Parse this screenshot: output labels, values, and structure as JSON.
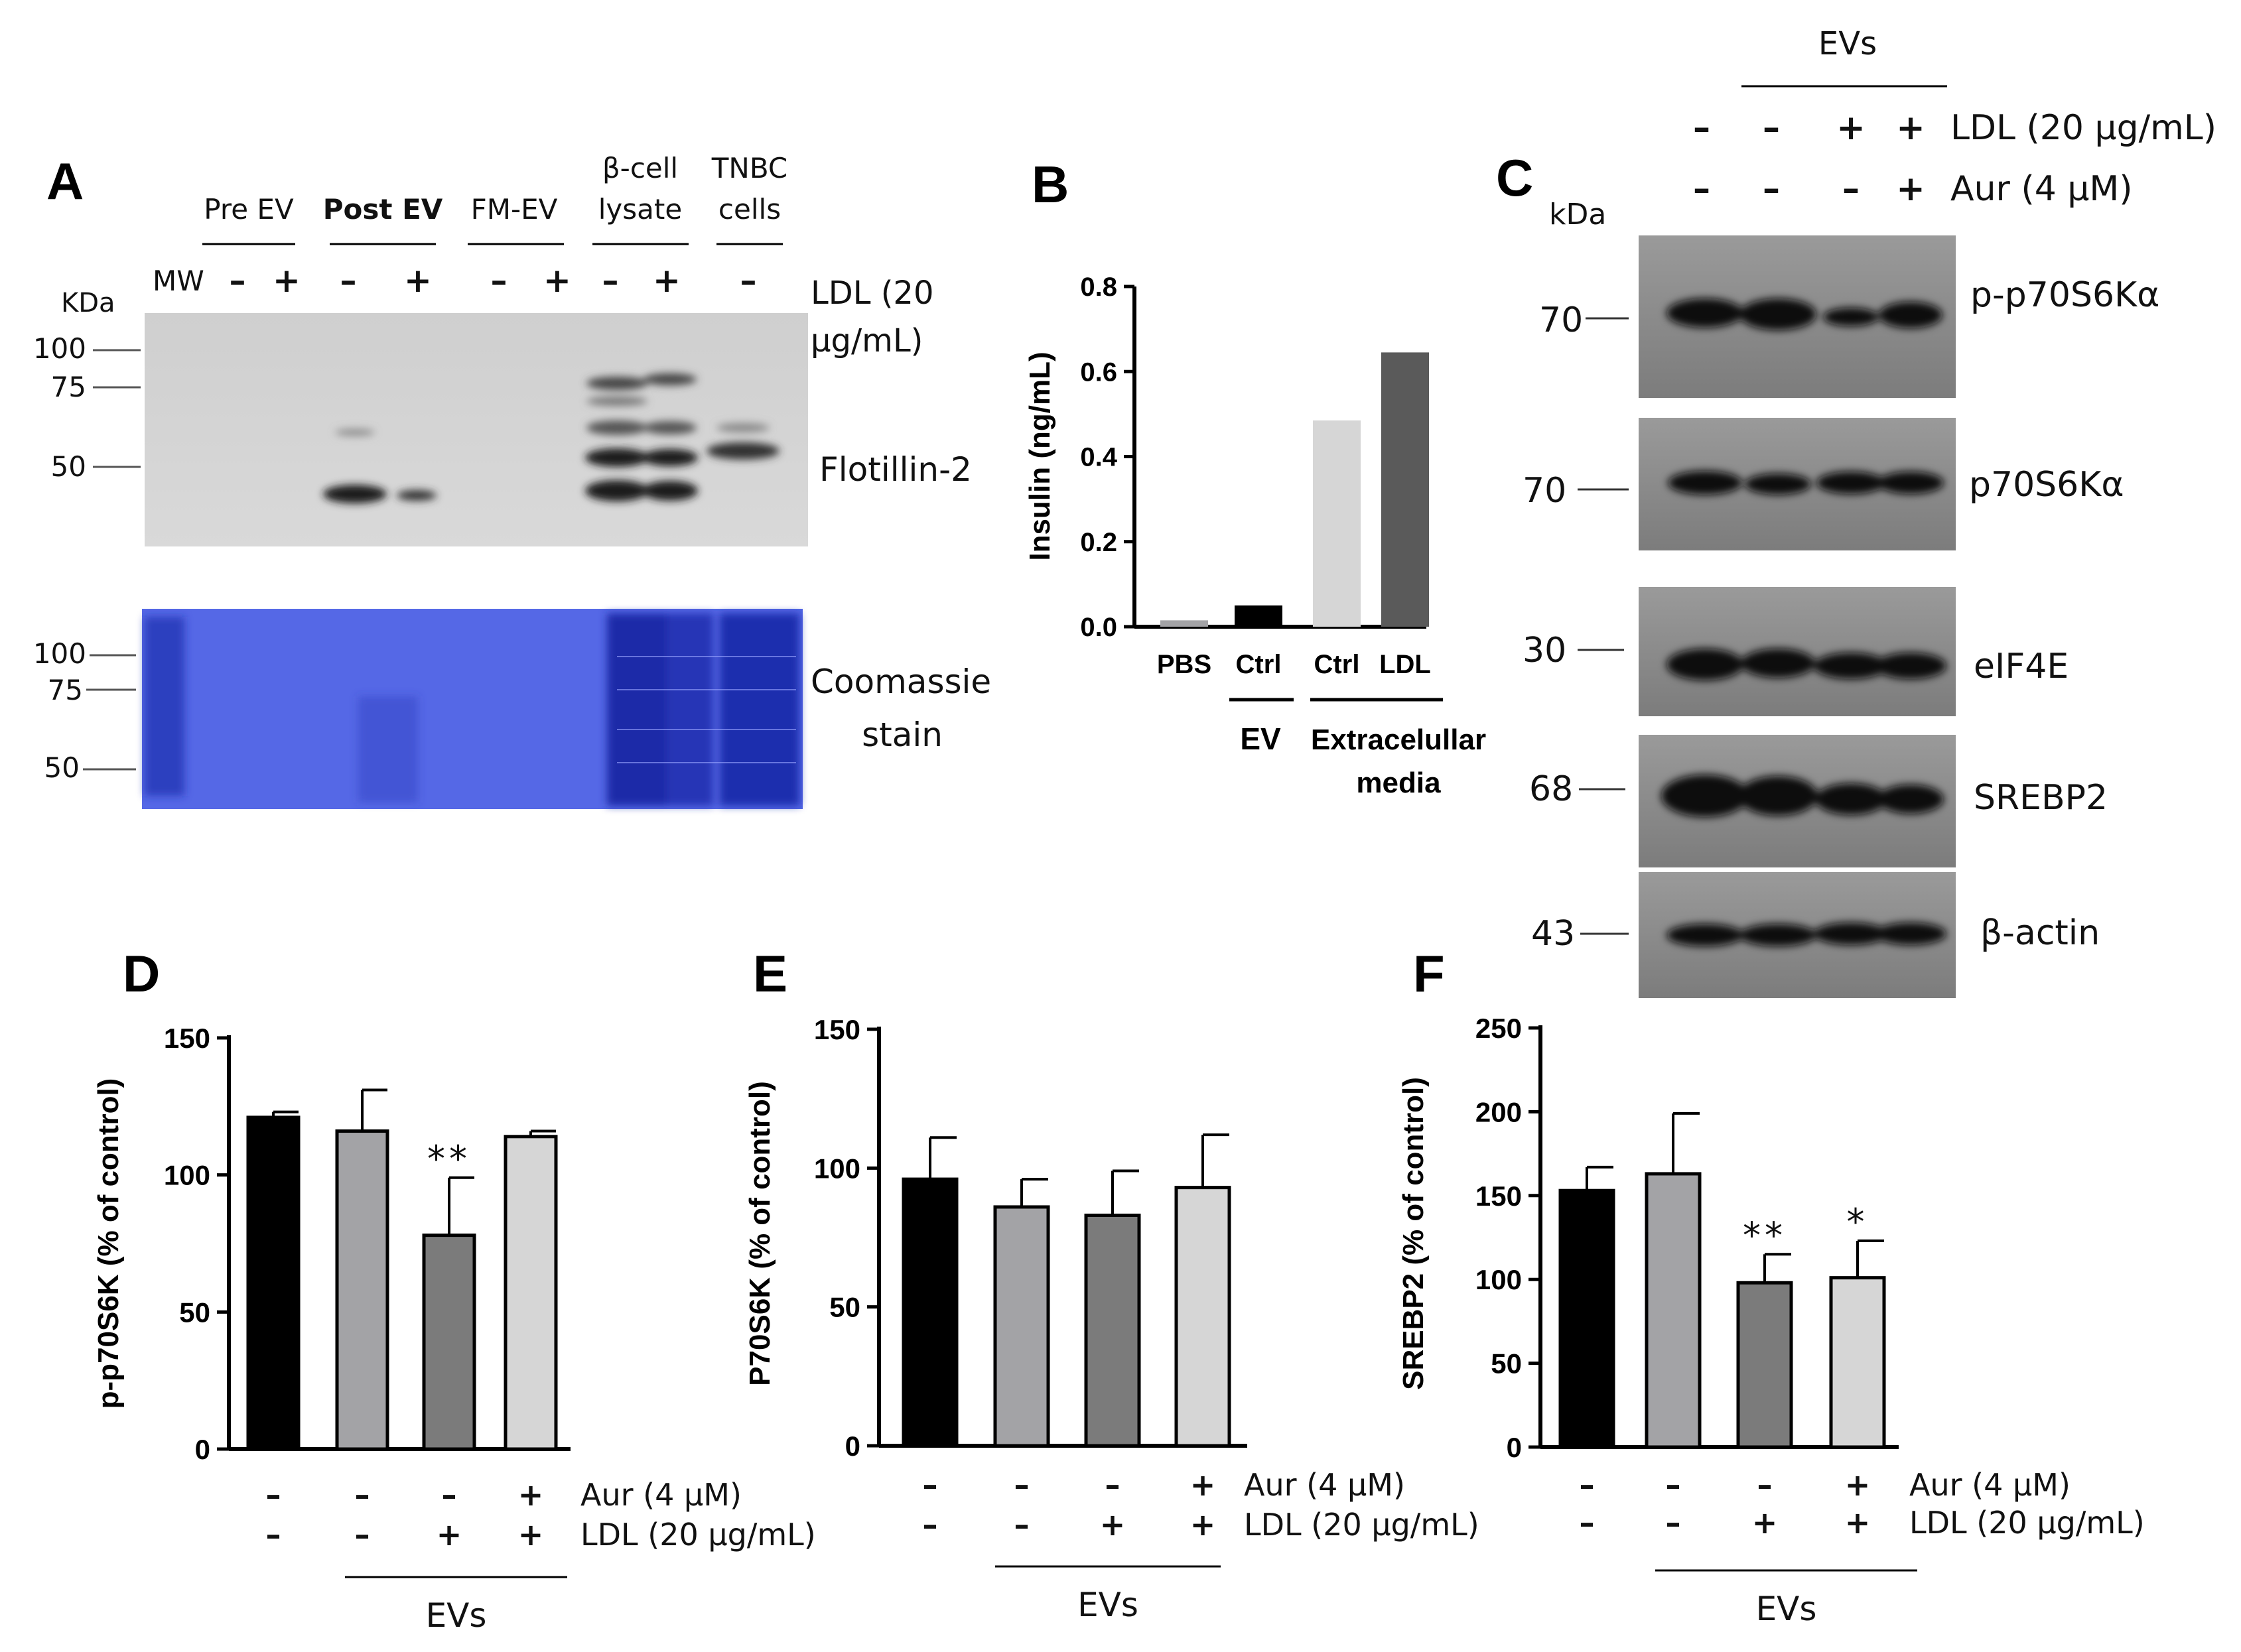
{
  "colors": {
    "black": "#000000",
    "dark_gray": "#5a5a5a",
    "mid_gray": "#7b7b7b",
    "gray": "#a3a3a6",
    "light_gray": "#d6d6d6",
    "blot_bg": "#8e8e8e",
    "coomassie": "#3a4fd6"
  },
  "panel_a": {
    "letter": "A",
    "groups": [
      "Pre EV",
      "Post EV",
      "FM-EV",
      "β-cell",
      "lysate",
      "TNBC",
      "cells"
    ],
    "mw_label": "MW",
    "signs": [
      "–",
      "+",
      "–",
      "+",
      "–",
      "+",
      "–",
      "+",
      "–"
    ],
    "kda": "KDa",
    "treatment_label_1": "LDL  (20",
    "treatment_label_2": "μg/mL)",
    "markers_top": [
      "100",
      "75",
      "50"
    ],
    "markers_bottom": [
      "100",
      "75",
      "50"
    ],
    "blot_label": "Flotillin-2",
    "stain_label_1": "Coomassie",
    "stain_label_2": "stain"
  },
  "panel_c": {
    "letter": "C",
    "header": "EVs",
    "kda": "kDa",
    "ldl_signs": [
      "–",
      "–",
      "+",
      "+"
    ],
    "aur_signs": [
      "–",
      "–",
      "–",
      "+"
    ],
    "ldl_label": "LDL (20 μg/mL)",
    "aur_label": "Aur (4 μM)",
    "blots": [
      {
        "label": "p-p70S6Kα",
        "marker": "70"
      },
      {
        "label": "p70S6Kα",
        "marker": "70"
      },
      {
        "label": "eIF4E",
        "marker": "30"
      },
      {
        "label": "SREBP2",
        "marker": "68"
      },
      {
        "label": "β-actin",
        "marker": "43"
      }
    ]
  },
  "chart_data": [
    {
      "panel": "B",
      "type": "bar",
      "title": "",
      "xlabel": "",
      "ylabel": "Insulin (ng/mL)",
      "categories": [
        "PBS",
        "Ctrl",
        "Ctrl",
        "LDL"
      ],
      "values": [
        0.015,
        0.05,
        0.485,
        0.645
      ],
      "bar_colors": [
        "#a3a3a6",
        "#000000",
        "#d6d6d6",
        "#5a5a5a"
      ],
      "ylim": [
        0,
        0.8
      ],
      "yticks": [
        "0.0",
        "0.2",
        "0.4",
        "0.6",
        "0.8"
      ],
      "group_labels": [
        "EV",
        "Extracelullar",
        "media"
      ]
    },
    {
      "panel": "D",
      "type": "bar",
      "ylabel": "p-p70S6K (% of control)",
      "values": [
        121,
        116,
        78,
        114
      ],
      "errors": [
        2,
        15,
        21,
        2
      ],
      "significance": [
        "",
        "",
        "**",
        ""
      ],
      "bar_colors": [
        "#000000",
        "#a3a3a6",
        "#7b7b7b",
        "#d6d6d6"
      ],
      "ylim": [
        0,
        150
      ],
      "yticks": [
        "0",
        "50",
        "100",
        "150"
      ],
      "row1_label": "Aur (4 μM)",
      "row1_signs": [
        "–",
        "–",
        "–",
        "+"
      ],
      "row2_label": "LDL (20 μg/mL)",
      "row2_signs": [
        "–",
        "–",
        "+",
        "+"
      ],
      "group_label": "EVs"
    },
    {
      "panel": "E",
      "type": "bar",
      "ylabel": "P70S6K (% of control)",
      "values": [
        96,
        86,
        83,
        93
      ],
      "errors": [
        15,
        10,
        16,
        19
      ],
      "significance": [
        "",
        "",
        "",
        ""
      ],
      "bar_colors": [
        "#000000",
        "#a3a3a6",
        "#7b7b7b",
        "#d6d6d6"
      ],
      "ylim": [
        0,
        150
      ],
      "yticks": [
        "0",
        "50",
        "100",
        "150"
      ],
      "row1_label": "Aur (4 μM)",
      "row1_signs": [
        "–",
        "–",
        "–",
        "+"
      ],
      "row2_label": "LDL (20 μg/mL)",
      "row2_signs": [
        "–",
        "–",
        "+",
        "+"
      ],
      "group_label": "EVs"
    },
    {
      "panel": "F",
      "type": "bar",
      "ylabel": "SREBP2 (% of control)",
      "values": [
        153,
        163,
        98,
        101
      ],
      "errors": [
        14,
        36,
        17,
        22
      ],
      "significance": [
        "",
        "",
        "**",
        "*"
      ],
      "bar_colors": [
        "#000000",
        "#a3a3a6",
        "#7b7b7b",
        "#d6d6d6"
      ],
      "ylim": [
        0,
        250
      ],
      "yticks": [
        "0",
        "50",
        "100",
        "150",
        "200",
        "250"
      ],
      "row1_label": "Aur (4 μM)",
      "row1_signs": [
        "–",
        "–",
        "–",
        "+"
      ],
      "row2_label": "LDL (20 μg/mL)",
      "row2_signs": [
        "–",
        "–",
        "+",
        "+"
      ],
      "group_label": "EVs"
    }
  ]
}
